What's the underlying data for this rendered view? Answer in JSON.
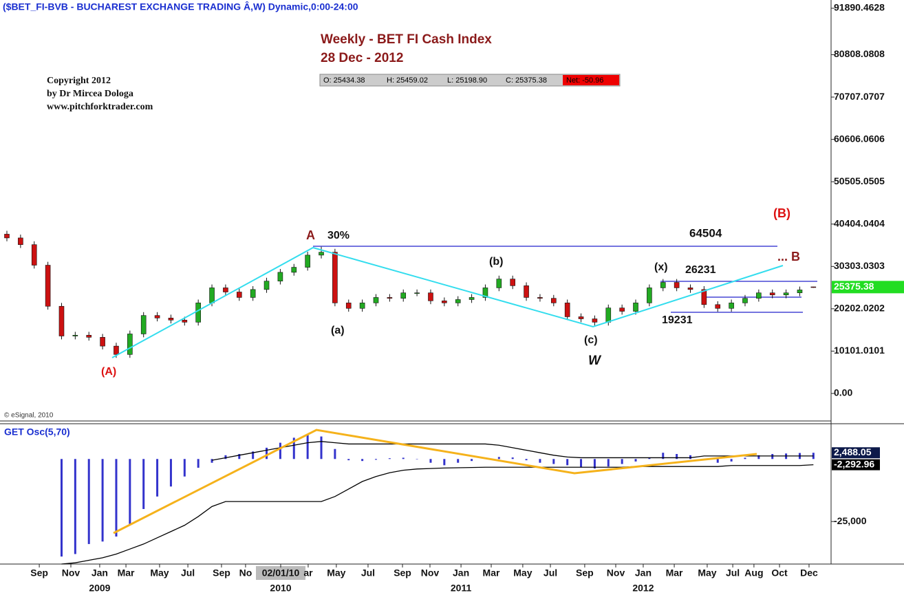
{
  "header": {
    "symbol": "($BET_FI-BVB - BUCHAREST EXCHANGE TRADING Â,W) Dynamic,0:00-24:00",
    "title": "Weekly - BET FI Cash Index",
    "date": "28 Dec  - 2012",
    "ohlc": [
      "O: 25434.38",
      "H: 25459.02",
      "L: 25198.90",
      "C: 25375.38",
      "Net: -50.96"
    ],
    "copyright": [
      "Copyright 2012",
      "by Dr Mircea Dologa",
      "www.pitchforktrader.com"
    ],
    "source": "© eSignal, 2010"
  },
  "annotations": {
    "A_low": "(A)",
    "A_peak": "A",
    "pct": "30%",
    "level": "64504",
    "B_target": "(B)",
    "B_small": "... B",
    "b": "(b)",
    "x": "(x)",
    "hi": "26231",
    "a": "(a)",
    "c": "(c)",
    "W": "W",
    "lo": "19231"
  },
  "chart_data": [
    {
      "type": "candlestick",
      "ylim": [
        0,
        91890.4628
      ],
      "yticks": [
        {
          "value": 0,
          "label": "0.00"
        },
        10101.0101,
        20202.0202,
        30303.0303,
        40404.0404,
        50505.0505,
        60606.0606,
        70707.0707,
        80808.0808,
        91890.4628
      ],
      "xticks": [
        {
          "value": 2.37,
          "label": "Sep"
        },
        {
          "value": 4.68,
          "label": "Nov"
        },
        {
          "value": 6.79,
          "label": "Jan"
        },
        {
          "value": 8.71,
          "label": "Mar"
        },
        {
          "value": 11.17,
          "label": "May"
        },
        {
          "value": 13.24,
          "label": "Jul"
        },
        {
          "value": 15.7,
          "label": "Sep"
        },
        {
          "value": 17.46,
          "label": "No"
        },
        {
          "value": 20.03,
          "label": "02/01/10"
        },
        {
          "value": 22.04,
          "label": "ar"
        },
        {
          "value": 24.1,
          "label": "May"
        },
        {
          "value": 26.42,
          "label": "Jul"
        },
        {
          "value": 28.94,
          "label": "Sep"
        },
        {
          "value": 30.95,
          "label": "Nov"
        },
        {
          "value": 33.22,
          "label": "Jan"
        },
        {
          "value": 35.43,
          "label": "Mar"
        },
        {
          "value": 37.74,
          "label": "May"
        },
        {
          "value": 39.76,
          "label": "Jul"
        },
        {
          "value": 42.27,
          "label": "Sep"
        },
        {
          "value": 44.54,
          "label": "Nov"
        },
        {
          "value": 46.55,
          "label": "Jan"
        },
        {
          "value": 48.82,
          "label": "Mar"
        },
        {
          "value": 51.23,
          "label": "May"
        },
        {
          "value": 53.1,
          "label": "Jul"
        },
        {
          "value": 54.65,
          "label": "Aug"
        },
        {
          "value": 56.52,
          "label": "Oct"
        },
        {
          "value": 58.68,
          "label": "Dec"
        }
      ],
      "year_ticks": [
        {
          "value": 6.79,
          "label": "2009"
        },
        {
          "value": 20.03,
          "label": "2010"
        },
        {
          "value": 33.22,
          "label": "2011"
        },
        {
          "value": 46.55,
          "label": "2012"
        }
      ],
      "up_color": "#22aa22",
      "down_color": "#cc1111",
      "open": [
        38000,
        37100,
        35500,
        30600,
        20800,
        13700,
        13900,
        13400,
        11300,
        9300,
        14200,
        18600,
        18000,
        17500,
        17000,
        21600,
        25200,
        24200,
        22900,
        24800,
        26800,
        28900,
        30100,
        33000,
        33700,
        21600,
        20300,
        21600,
        22900,
        22700,
        24000,
        24000,
        22100,
        21600,
        22400,
        22900,
        25200,
        27300,
        25700,
        22900,
        22700,
        21600,
        18300,
        17800,
        17000,
        20400,
        19600,
        21600,
        25200,
        26500,
        25200,
        24800,
        21200,
        20300,
        21600,
        22700,
        24000,
        23500,
        24000,
        25434.38
      ],
      "high": [
        38800,
        37900,
        36300,
        31400,
        21600,
        14700,
        14700,
        14200,
        12100,
        15000,
        19400,
        19400,
        18800,
        18300,
        22400,
        26000,
        26000,
        25000,
        25600,
        27600,
        29700,
        30900,
        33800,
        35000,
        34500,
        22400,
        22400,
        23700,
        23700,
        24800,
        24800,
        24800,
        22900,
        23200,
        23700,
        26000,
        28100,
        28100,
        26500,
        23700,
        23500,
        22400,
        19100,
        18600,
        21200,
        21200,
        22400,
        26000,
        27300,
        27300,
        26000,
        25600,
        22000,
        22400,
        23500,
        24800,
        24800,
        24800,
        25500,
        25459.02
      ],
      "low": [
        36300,
        34700,
        29800,
        20000,
        12900,
        12900,
        12600,
        10500,
        8500,
        8500,
        13400,
        17200,
        16700,
        16200,
        16200,
        20800,
        23400,
        22100,
        22100,
        24000,
        26000,
        28100,
        29300,
        32200,
        20800,
        19500,
        19500,
        20800,
        21900,
        21900,
        23200,
        21300,
        20800,
        20800,
        21600,
        22100,
        24400,
        24900,
        22100,
        21900,
        20800,
        17500,
        17000,
        16200,
        16200,
        18800,
        18800,
        20800,
        24400,
        24400,
        24000,
        20400,
        19500,
        19500,
        20800,
        21900,
        22700,
        22700,
        23200,
        25198.9
      ],
      "close": [
        37100,
        35500,
        30600,
        20800,
        13700,
        13900,
        13400,
        11300,
        9300,
        14200,
        18600,
        18000,
        17500,
        17000,
        21600,
        25200,
        24200,
        22900,
        24800,
        26800,
        28900,
        30100,
        33000,
        33700,
        21600,
        20300,
        21600,
        22900,
        22700,
        24000,
        24000,
        22100,
        21600,
        22400,
        22900,
        25200,
        27300,
        25700,
        22900,
        22700,
        21600,
        18300,
        17800,
        17000,
        20400,
        19600,
        21600,
        25200,
        26500,
        25200,
        24800,
        21200,
        20300,
        21600,
        22700,
        24000,
        23500,
        24000,
        24700,
        25375.38
      ]
    },
    {
      "type": "oscillator",
      "title": "GET Osc(5,70)",
      "ylim": [
        -42000,
        13000
      ],
      "yticks": [
        {
          "value": -25000,
          "label": "-25,000"
        }
      ],
      "series": [
        {
          "kind": "bar",
          "color": "#3333cc",
          "values": [
            null,
            null,
            null,
            null,
            -39000,
            -38000,
            -34000,
            -33000,
            -31000,
            -26000,
            -20000,
            -15000,
            -11000,
            -7000,
            -3500,
            -1500,
            1500,
            2000,
            3000,
            4500,
            6500,
            8500,
            10000,
            9000,
            4000,
            -500,
            -800,
            -300,
            300,
            500,
            0,
            -1500,
            -2500,
            -1500,
            -800,
            200,
            800,
            600,
            -500,
            -1500,
            -2000,
            -2500,
            -3200,
            -3800,
            -3000,
            -2000,
            -1000,
            500,
            2500,
            2000,
            1500,
            -500,
            -1500,
            -1000,
            500,
            1500,
            2000,
            2200,
            2400,
            2488.05
          ],
          "value_labels": [
            null,
            null,
            null,
            null,
            null,
            null,
            null,
            null,
            null,
            null,
            null,
            null,
            null,
            null,
            null,
            null,
            null,
            null,
            null,
            null,
            null,
            null,
            null,
            null,
            null,
            null,
            null,
            null,
            null,
            null,
            null,
            null,
            null,
            null,
            null,
            null,
            null,
            null,
            null,
            null,
            null,
            null,
            null,
            null,
            null,
            null,
            null,
            null,
            null,
            null,
            null,
            null,
            null,
            null,
            null,
            null,
            null,
            null,
            null,
            "2,488.05"
          ]
        },
        {
          "kind": "line",
          "color": "#000000",
          "values": [
            null,
            null,
            null,
            null,
            null,
            null,
            null,
            null,
            null,
            null,
            null,
            null,
            null,
            null,
            null,
            -500,
            500,
            1500,
            2500,
            3500,
            4500,
            5500,
            6500,
            7000,
            6500,
            6000,
            6000,
            6000,
            6000,
            6000,
            6000,
            6000,
            6000,
            6000,
            6000,
            6000,
            5500,
            4500,
            3500,
            2500,
            1500,
            800,
            500,
            500,
            500,
            500,
            500,
            500,
            500,
            500,
            500,
            1200,
            1200,
            1200,
            1200,
            1200,
            1200,
            1200,
            1200,
            1200
          ]
        },
        {
          "kind": "line",
          "color": "#000000",
          "values": [
            null,
            null,
            null,
            null,
            -42000,
            -41500,
            -40500,
            -39500,
            -38000,
            -36000,
            -34000,
            -31500,
            -29000,
            -26500,
            -23000,
            -19000,
            -17000,
            -17000,
            -17000,
            -17000,
            -17000,
            -17000,
            -17000,
            -17000,
            -15000,
            -12000,
            -9000,
            -7000,
            -5500,
            -4500,
            -4000,
            -3800,
            -3600,
            -3500,
            -3400,
            -3300,
            -3300,
            -3300,
            -3300,
            -3300,
            -3300,
            -3300,
            -3300,
            -3300,
            -3300,
            -3300,
            -3000,
            -3000,
            -3000,
            -3000,
            -3000,
            -3000,
            -3000,
            -2600,
            -2600,
            -2600,
            -2600,
            -2600,
            -2600,
            -2292.96
          ],
          "value_labels": [
            null,
            null,
            null,
            null,
            null,
            null,
            null,
            null,
            null,
            null,
            null,
            null,
            null,
            null,
            null,
            null,
            null,
            null,
            null,
            null,
            null,
            null,
            null,
            null,
            null,
            null,
            null,
            null,
            null,
            null,
            null,
            null,
            null,
            null,
            null,
            null,
            null,
            null,
            null,
            null,
            null,
            null,
            null,
            null,
            null,
            null,
            null,
            null,
            null,
            null,
            null,
            null,
            null,
            null,
            null,
            null,
            null,
            null,
            null,
            "-2,292.96"
          ]
        }
      ]
    }
  ]
}
